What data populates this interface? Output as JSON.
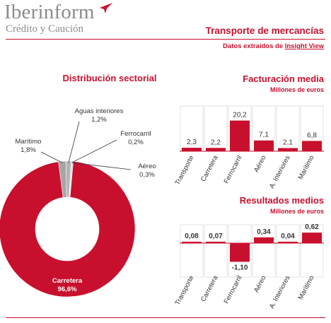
{
  "header": {
    "brand_name": "Iberinform",
    "brand_sub": "Crédito y Caución",
    "title": "Transporte de mercancías",
    "source_prefix": "Datos extraídos de ",
    "source_highlight": "Insight View"
  },
  "colors": {
    "accent": "#c8102e",
    "gray": "#a6a6a6",
    "dark": "#333333"
  },
  "chart_data": [
    {
      "type": "pie",
      "title": "Distribución sectorial",
      "categories": [
        "Carretera",
        "Aguas interiores",
        "Ferrocarril",
        "Aéreo",
        "Marítimo"
      ],
      "values": [
        96.6,
        1.2,
        0.2,
        0.3,
        1.8
      ],
      "labels": [
        "96,6%",
        "1,2%",
        "0,2%",
        "0,3%",
        "1,8%"
      ],
      "colors": [
        "#c8102e",
        "#b3b3b3",
        "#bfbfbf",
        "#cccccc",
        "#a6a6a6"
      ]
    },
    {
      "type": "bar",
      "title": "Facturación media",
      "subtitle": "Millones de euros",
      "categories": [
        "Transporte",
        "Carretera",
        "Ferrocarril",
        "Aéreo",
        "A. Interiores",
        "Marítimo"
      ],
      "values": [
        2.3,
        2.2,
        20.2,
        7.1,
        2.1,
        6.8
      ],
      "labels": [
        "2,3",
        "2,2",
        "20,2",
        "7,1",
        "2,1",
        "6,8"
      ]
    },
    {
      "type": "bar",
      "title": "Resultados medios",
      "subtitle": "Millones de euros",
      "categories": [
        "Transporte",
        "Carretera",
        "Ferrocarril",
        "Aéreo",
        "A. Interiores",
        "Marítimo"
      ],
      "values": [
        0.08,
        0.07,
        -1.1,
        0.34,
        0.04,
        0.62
      ],
      "labels": [
        "0,08",
        "0,07",
        "-1,10",
        "0,34",
        "0,04",
        "0,62"
      ]
    }
  ]
}
